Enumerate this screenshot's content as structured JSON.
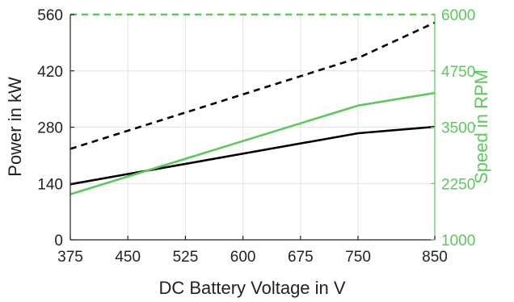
{
  "chart_data": {
    "type": "line",
    "title": "",
    "xlabel": "DC Battery Voltage in V",
    "ylabel_left": "Power in kW",
    "ylabel_right": "Speed in RPM",
    "xlim": [
      375,
      850
    ],
    "ylim_left": [
      0,
      560
    ],
    "ylim_right": [
      1000,
      6000
    ],
    "x_ticks": [
      375,
      450,
      525,
      600,
      675,
      750,
      850
    ],
    "y_left_ticks": [
      0,
      140,
      280,
      420,
      560
    ],
    "y_right_ticks": [
      1000,
      2250,
      3500,
      4750,
      6000
    ],
    "grid": true,
    "legend": "none",
    "colors": {
      "power": "#000000",
      "speed": "#5ac85a",
      "grid": "#e3e3e3"
    },
    "series": [
      {
        "axis": "left",
        "style": "solid",
        "color": "#000000",
        "x": [
          375,
          750,
          850
        ],
        "y": [
          138,
          265,
          281
        ]
      },
      {
        "axis": "left",
        "style": "dashed",
        "color": "#000000",
        "x": [
          375,
          750,
          850
        ],
        "y": [
          226,
          452,
          540
        ]
      },
      {
        "axis": "right",
        "style": "solid",
        "color": "#5ac85a",
        "x": [
          375,
          750,
          850
        ],
        "y": [
          2010,
          3980,
          4260
        ]
      },
      {
        "axis": "right",
        "style": "dashed",
        "color": "#5ac85a",
        "x": [
          375,
          850
        ],
        "y": [
          6000,
          6000
        ]
      }
    ]
  }
}
